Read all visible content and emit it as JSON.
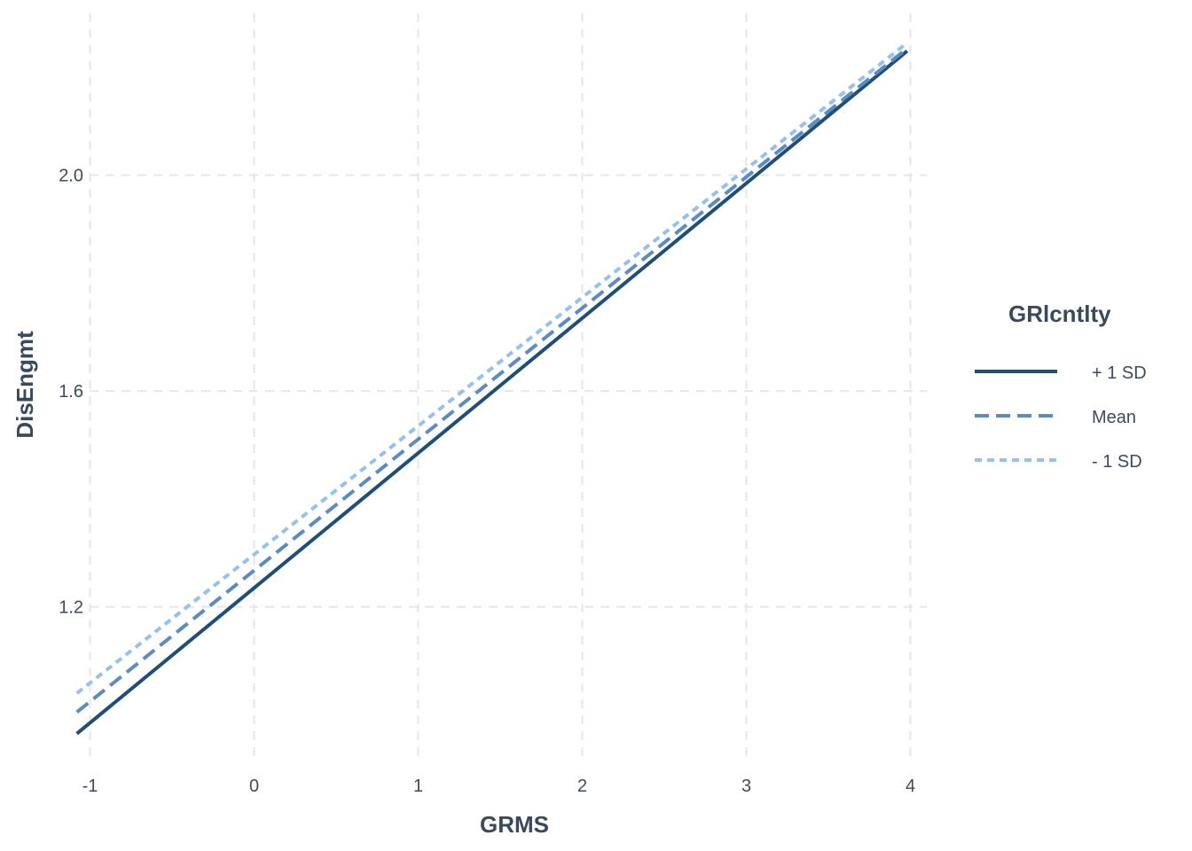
{
  "chart_data": {
    "type": "line",
    "title": "",
    "xlabel": "GRMS",
    "ylabel": "DisEngmt",
    "xlim": [
      -1.1,
      4.1
    ],
    "ylim": [
      0.92,
      2.3
    ],
    "x_ticks": [
      -1,
      0,
      1,
      2,
      3,
      4
    ],
    "x_tick_labels": [
      "-1",
      "0",
      "1",
      "2",
      "3",
      "4"
    ],
    "y_ticks": [
      1.2,
      1.6,
      2.0
    ],
    "y_tick_labels": [
      "1.2",
      "1.6",
      "2.0"
    ],
    "grid": true,
    "legend": {
      "title": "GRlcntlty",
      "placement": "right"
    },
    "series": [
      {
        "name": "+ 1 SD",
        "color": "#1f4e79",
        "dash": "solid",
        "x": [
          -1.08,
          3.98
        ],
        "y": [
          0.965,
          2.23
        ]
      },
      {
        "name": "Mean",
        "color": "#5b8bc0",
        "dash": "dashed",
        "x": [
          -1.08,
          3.98
        ],
        "y": [
          1.005,
          2.235
        ]
      },
      {
        "name": "- 1 SD",
        "color": "#95c1ea",
        "dash": "dotted",
        "x": [
          -1.08,
          3.98
        ],
        "y": [
          1.04,
          2.245
        ]
      }
    ]
  }
}
